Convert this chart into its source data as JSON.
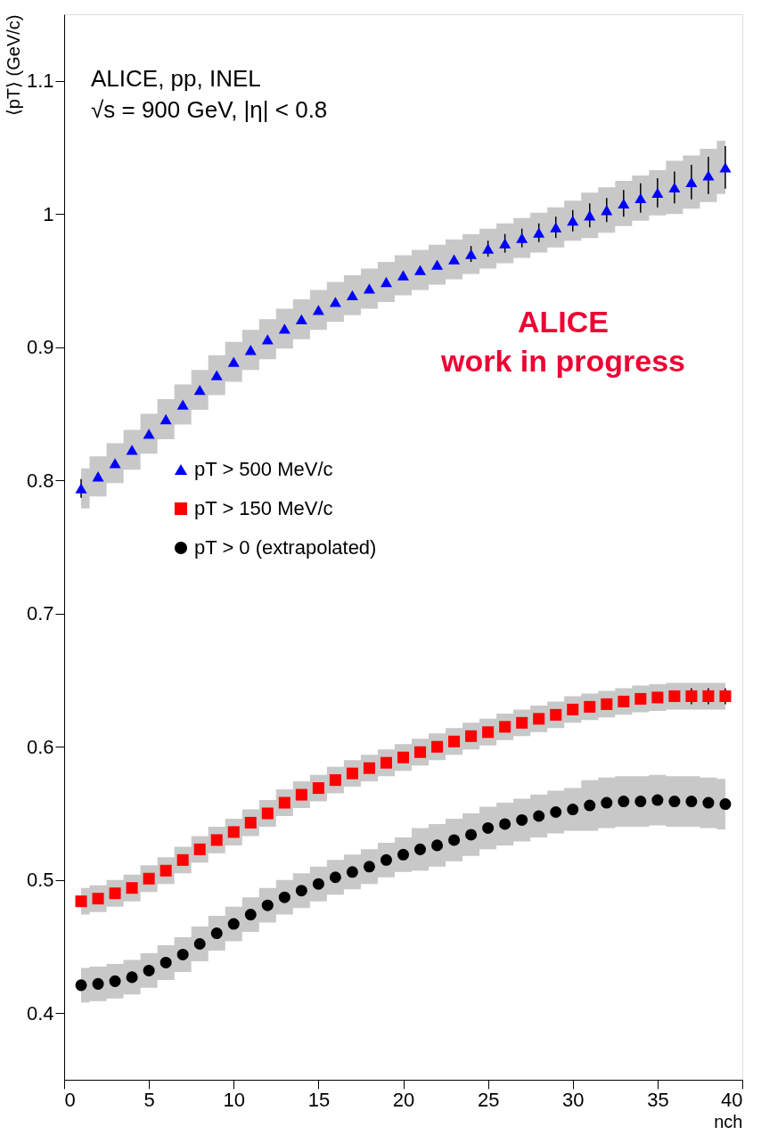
{
  "chart_data": {
    "type": "scatter",
    "ylabel": "⟨pT⟩ (GeV/c)",
    "xlabel": "nch",
    "annotations": [
      "ALICE, pp, INEL",
      "√s = 900 GeV, |η| < 0.8",
      "ALICE\nwork in progress"
    ],
    "x": [
      1,
      2,
      3,
      4,
      5,
      6,
      7,
      8,
      9,
      10,
      11,
      12,
      13,
      14,
      15,
      16,
      17,
      18,
      19,
      20,
      21,
      22,
      23,
      24,
      25,
      26,
      27,
      28,
      29,
      30,
      31,
      32,
      33,
      34,
      35,
      36,
      37,
      38,
      39
    ],
    "xlim": [
      0,
      40
    ],
    "xticks": [
      0,
      5,
      10,
      15,
      20,
      25,
      30,
      35,
      40
    ],
    "ylim": [
      0.35,
      1.15
    ],
    "yticks": [
      0.4,
      0.5,
      0.6,
      0.7,
      0.8,
      0.9,
      1,
      1.1
    ],
    "grid": false,
    "legend": "left",
    "series": [
      {
        "name": "pT > 500 MeV/c",
        "color": "#0000ff",
        "marker": "triangle",
        "values": [
          0.794,
          0.803,
          0.813,
          0.823,
          0.835,
          0.846,
          0.857,
          0.868,
          0.879,
          0.889,
          0.898,
          0.906,
          0.914,
          0.921,
          0.928,
          0.934,
          0.939,
          0.944,
          0.949,
          0.954,
          0.958,
          0.962,
          0.966,
          0.97,
          0.974,
          0.978,
          0.982,
          0.986,
          0.99,
          0.995,
          0.999,
          1.003,
          1.008,
          1.012,
          1.016,
          1.02,
          1.024,
          1.029,
          1.035
        ],
        "errors": [
          0.007,
          null,
          null,
          null,
          null,
          null,
          null,
          null,
          null,
          null,
          null,
          null,
          null,
          null,
          null,
          null,
          null,
          null,
          null,
          null,
          null,
          null,
          null,
          0.006,
          0.006,
          0.007,
          0.007,
          0.007,
          0.008,
          0.008,
          0.009,
          0.009,
          0.01,
          0.011,
          0.011,
          0.012,
          0.013,
          0.014,
          0.016
        ],
        "lower": [
          0.779,
          0.788,
          0.798,
          0.808,
          0.82,
          0.831,
          0.842,
          0.853,
          0.864,
          0.874,
          0.883,
          0.891,
          0.899,
          0.906,
          0.913,
          0.919,
          0.924,
          0.929,
          0.934,
          0.939,
          0.943,
          0.947,
          0.951,
          0.955,
          0.959,
          0.963,
          0.967,
          0.971,
          0.975,
          0.98,
          0.982,
          0.986,
          0.991,
          0.995,
          0.999,
          1.0,
          1.004,
          1.009,
          1.015
        ],
        "upper": [
          0.809,
          0.818,
          0.828,
          0.838,
          0.85,
          0.861,
          0.872,
          0.883,
          0.894,
          0.904,
          0.913,
          0.921,
          0.929,
          0.936,
          0.943,
          0.949,
          0.954,
          0.959,
          0.964,
          0.969,
          0.973,
          0.977,
          0.981,
          0.985,
          0.989,
          0.993,
          0.997,
          1.001,
          1.005,
          1.01,
          1.016,
          1.02,
          1.025,
          1.029,
          1.033,
          1.04,
          1.044,
          1.049,
          1.055
        ]
      },
      {
        "name": "pT > 150 MeV/c",
        "color": "#ff0000",
        "marker": "square",
        "values": [
          0.484,
          0.486,
          0.49,
          0.494,
          0.501,
          0.507,
          0.515,
          0.523,
          0.53,
          0.536,
          0.543,
          0.55,
          0.558,
          0.564,
          0.569,
          0.575,
          0.58,
          0.584,
          0.588,
          0.592,
          0.596,
          0.6,
          0.604,
          0.608,
          0.611,
          0.615,
          0.618,
          0.621,
          0.624,
          0.628,
          0.63,
          0.632,
          0.634,
          0.636,
          0.637,
          0.638,
          0.638,
          0.638,
          0.638
        ],
        "errors": [
          null,
          null,
          null,
          null,
          null,
          null,
          null,
          null,
          null,
          null,
          null,
          null,
          null,
          null,
          null,
          null,
          null,
          null,
          null,
          null,
          null,
          null,
          null,
          null,
          null,
          null,
          null,
          null,
          null,
          null,
          null,
          null,
          null,
          null,
          null,
          null,
          0.006,
          0.006,
          0.006
        ],
        "lower": [
          0.474,
          0.476,
          0.48,
          0.484,
          0.491,
          0.497,
          0.505,
          0.513,
          0.52,
          0.526,
          0.533,
          0.54,
          0.548,
          0.554,
          0.559,
          0.565,
          0.57,
          0.574,
          0.578,
          0.582,
          0.586,
          0.59,
          0.594,
          0.598,
          0.601,
          0.605,
          0.608,
          0.611,
          0.614,
          0.618,
          0.62,
          0.622,
          0.624,
          0.626,
          0.627,
          0.628,
          0.628,
          0.628,
          0.628
        ],
        "upper": [
          0.494,
          0.496,
          0.5,
          0.504,
          0.511,
          0.517,
          0.525,
          0.533,
          0.54,
          0.546,
          0.553,
          0.56,
          0.568,
          0.574,
          0.579,
          0.585,
          0.59,
          0.594,
          0.598,
          0.602,
          0.606,
          0.61,
          0.614,
          0.618,
          0.621,
          0.625,
          0.628,
          0.631,
          0.634,
          0.638,
          0.64,
          0.642,
          0.644,
          0.646,
          0.647,
          0.648,
          0.648,
          0.648,
          0.648
        ]
      },
      {
        "name": "pT > 0 (extrapolated)",
        "color": "#000000",
        "marker": "circle",
        "values": [
          0.421,
          0.422,
          0.424,
          0.427,
          0.432,
          0.438,
          0.444,
          0.452,
          0.46,
          0.467,
          0.474,
          0.481,
          0.487,
          0.492,
          0.497,
          0.502,
          0.506,
          0.51,
          0.515,
          0.519,
          0.523,
          0.526,
          0.53,
          0.534,
          0.539,
          0.542,
          0.545,
          0.548,
          0.551,
          0.553,
          0.556,
          0.558,
          0.559,
          0.559,
          0.56,
          0.559,
          0.559,
          0.558,
          0.557
        ],
        "lower": [
          0.408,
          0.409,
          0.411,
          0.414,
          0.419,
          0.425,
          0.431,
          0.439,
          0.447,
          0.454,
          0.461,
          0.468,
          0.474,
          0.479,
          0.484,
          0.489,
          0.493,
          0.497,
          0.502,
          0.506,
          0.507,
          0.51,
          0.514,
          0.518,
          0.523,
          0.526,
          0.529,
          0.532,
          0.535,
          0.537,
          0.537,
          0.539,
          0.54,
          0.54,
          0.541,
          0.54,
          0.54,
          0.539,
          0.538
        ],
        "upper": [
          0.434,
          0.435,
          0.437,
          0.44,
          0.445,
          0.451,
          0.457,
          0.465,
          0.473,
          0.48,
          0.487,
          0.494,
          0.5,
          0.505,
          0.51,
          0.515,
          0.519,
          0.523,
          0.528,
          0.532,
          0.539,
          0.542,
          0.546,
          0.55,
          0.555,
          0.558,
          0.561,
          0.564,
          0.567,
          0.569,
          0.575,
          0.577,
          0.578,
          0.578,
          0.579,
          0.578,
          0.578,
          0.577,
          0.576
        ]
      }
    ]
  }
}
